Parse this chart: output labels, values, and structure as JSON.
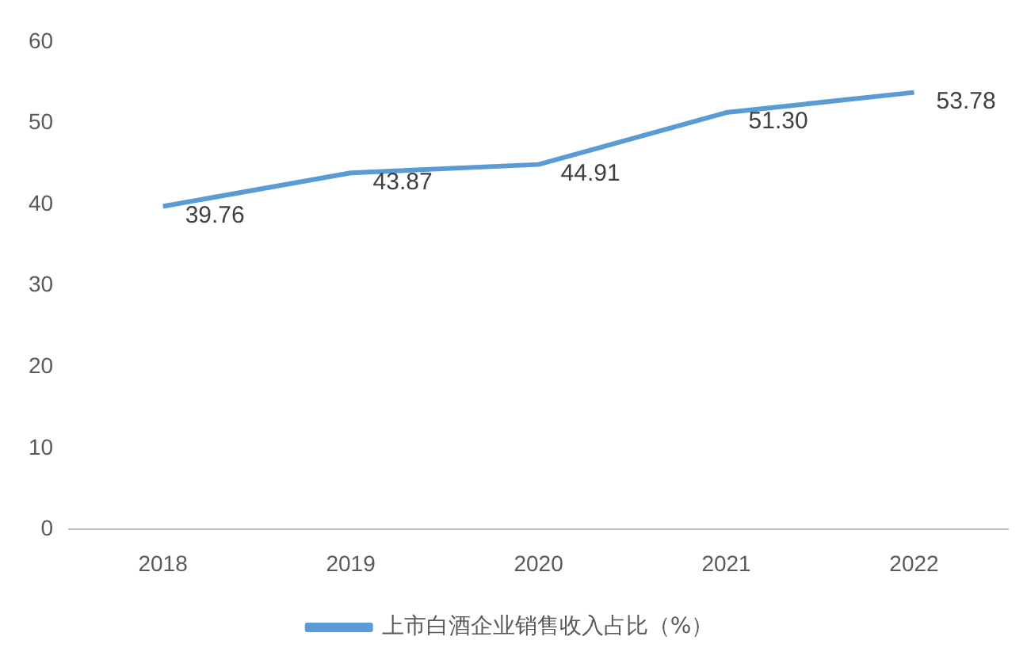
{
  "chart_data": {
    "type": "line",
    "categories": [
      "2018",
      "2019",
      "2020",
      "2021",
      "2022"
    ],
    "series": [
      {
        "name": "上市白酒企业销售收入占比（%）",
        "color": "#5b9bd5",
        "values": [
          39.76,
          43.87,
          44.91,
          51.3,
          53.78
        ]
      }
    ],
    "value_labels": [
      "39.76",
      "43.87",
      "44.91",
      "51.30",
      "53.78"
    ],
    "ylim": [
      0,
      60
    ],
    "yticks": [
      0,
      10,
      20,
      30,
      40,
      50,
      60
    ],
    "grid": false,
    "legend": "bottom",
    "marker": "none",
    "line_style": "solid"
  }
}
